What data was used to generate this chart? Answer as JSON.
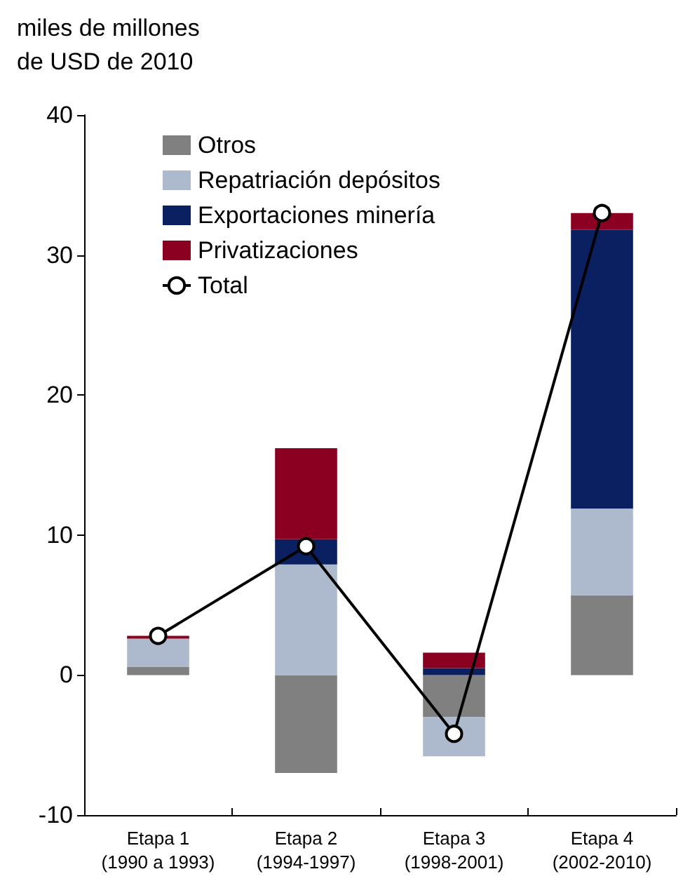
{
  "chart_data": {
    "type": "bar",
    "stacked": true,
    "ylabel": "miles de millones\nde USD de 2010",
    "categories": [
      "Etapa 1\n(1990 a 1993)",
      "Etapa 2\n(1994-1997)",
      "Etapa 3\n(1998-2001)",
      "Etapa 4\n(2002-2010)"
    ],
    "series": [
      {
        "name": "Otros",
        "color": "#808080",
        "values": [
          0.6,
          -7.0,
          -3.0,
          5.7
        ]
      },
      {
        "name": "Repatriación depósitos",
        "color": "#adb9cc",
        "values": [
          2.0,
          7.9,
          -2.8,
          6.2
        ]
      },
      {
        "name": "Exportaciones minería",
        "color": "#0a2060",
        "values": [
          0,
          1.8,
          0.5,
          19.9
        ]
      },
      {
        "name": "Privatizaciones",
        "color": "#8b0020",
        "values": [
          0.2,
          6.5,
          1.1,
          1.2
        ]
      },
      {
        "name": "Total",
        "type": "line",
        "color": "#000000",
        "marker": "circle",
        "values": [
          2.8,
          9.2,
          -4.2,
          33.0
        ]
      }
    ],
    "ylim": [
      -10,
      40
    ],
    "yticks": [
      -10,
      0,
      10,
      20,
      30,
      40
    ],
    "grid": false,
    "legend": "top left"
  }
}
